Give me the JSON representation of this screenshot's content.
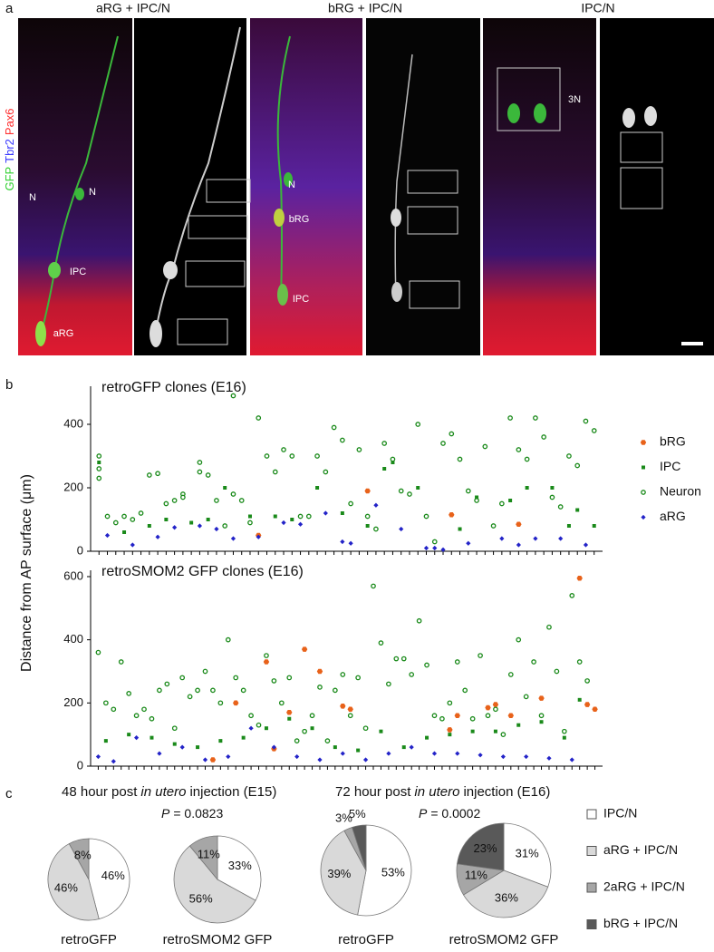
{
  "panel_labels": [
    "a",
    "b",
    "c"
  ],
  "panel_a": {
    "columns": [
      "aRG + IPC/N",
      "bRG + IPC/N",
      "IPC/N"
    ],
    "stain_labels": [
      "GFP",
      "Tbr2",
      "Pax6"
    ],
    "cell_labels": [
      "N",
      "N",
      "IPC",
      "aRG",
      "N",
      "bRG",
      "IPC",
      "3N"
    ]
  },
  "chart_data": [
    {
      "type": "scatter",
      "title": "retroGFP clones (E16)",
      "ylabel": "Distance from AP surface (μm)",
      "xlim": [
        0,
        61
      ],
      "ylim": [
        0,
        520
      ],
      "yticks": [
        0,
        200,
        400
      ],
      "xticks": [
        1,
        2,
        3,
        4,
        5,
        6,
        7,
        8,
        9,
        10,
        11,
        12,
        13,
        14,
        15,
        16,
        17,
        18,
        19,
        20,
        21,
        22,
        23,
        24,
        25,
        26,
        27,
        28,
        29,
        30,
        31,
        32,
        33,
        34,
        35,
        36,
        37,
        38,
        39,
        40,
        41,
        42,
        43,
        44,
        45,
        46,
        47,
        48,
        49,
        50,
        51,
        52,
        53,
        54,
        55,
        56,
        57,
        58,
        59,
        60
      ],
      "series": [
        {
          "name": "bRG",
          "color": "#e8621a",
          "marker": "hexagon",
          "x": [
            20,
            33,
            43,
            51
          ],
          "values": [
            50,
            190,
            115,
            85
          ]
        },
        {
          "name": "IPC",
          "color": "#1a8a1a",
          "marker": "square",
          "x": [
            1,
            4,
            7,
            9,
            12,
            14,
            16,
            19,
            22,
            24,
            27,
            30,
            33,
            35,
            36,
            39,
            44,
            46,
            50,
            52,
            55,
            57,
            58,
            60
          ],
          "values": [
            280,
            60,
            80,
            100,
            90,
            100,
            200,
            110,
            110,
            100,
            200,
            120,
            80,
            260,
            280,
            200,
            70,
            170,
            160,
            200,
            200,
            80,
            130,
            80
          ]
        },
        {
          "name": "Neuron",
          "color": "#1a8a1a",
          "marker": "circle-open",
          "x": [
            1,
            1,
            1,
            2,
            3,
            4,
            5,
            6,
            7,
            8,
            9,
            10,
            11,
            11,
            13,
            13,
            14,
            15,
            16,
            17,
            17,
            18,
            19,
            20,
            21,
            22,
            23,
            24,
            25,
            26,
            27,
            28,
            29,
            30,
            31,
            32,
            33,
            34,
            35,
            36,
            37,
            38,
            39,
            40,
            41,
            42,
            43,
            44,
            45,
            46,
            47,
            48,
            49,
            50,
            51,
            52,
            53,
            54,
            55,
            56,
            57,
            58,
            59,
            60
          ],
          "values": [
            300,
            260,
            230,
            110,
            90,
            110,
            100,
            120,
            240,
            245,
            150,
            160,
            180,
            170,
            280,
            250,
            240,
            160,
            80,
            490,
            180,
            160,
            90,
            420,
            300,
            250,
            320,
            300,
            110,
            110,
            300,
            250,
            390,
            350,
            150,
            320,
            110,
            70,
            340,
            290,
            190,
            180,
            400,
            110,
            30,
            340,
            370,
            290,
            190,
            160,
            330,
            80,
            150,
            420,
            320,
            290,
            420,
            360,
            170,
            140,
            300,
            270,
            410,
            380
          ]
        },
        {
          "name": "aRG",
          "color": "#2323c8",
          "marker": "diamond",
          "x": [
            2,
            5,
            8,
            10,
            13,
            15,
            17,
            20,
            23,
            25,
            28,
            30,
            31,
            34,
            37,
            40,
            41,
            42,
            45,
            49,
            51,
            53,
            56,
            59
          ],
          "values": [
            50,
            20,
            45,
            75,
            80,
            70,
            40,
            45,
            90,
            85,
            120,
            30,
            25,
            145,
            70,
            10,
            10,
            5,
            25,
            40,
            20,
            40,
            40,
            20
          ]
        }
      ]
    },
    {
      "type": "scatter",
      "title": "retroSMOM2 GFP clones (E16)",
      "xlim": [
        0,
        67
      ],
      "ylim": [
        0,
        620
      ],
      "yticks": [
        0,
        200,
        400,
        600
      ],
      "xticks": [
        1,
        2,
        3,
        4,
        5,
        6,
        7,
        8,
        9,
        10,
        11,
        12,
        13,
        14,
        15,
        16,
        17,
        18,
        19,
        20,
        21,
        22,
        23,
        24,
        25,
        26,
        27,
        28,
        29,
        30,
        31,
        32,
        33,
        34,
        35,
        36,
        37,
        38,
        39,
        40,
        41,
        42,
        43,
        44,
        45,
        46,
        47,
        48,
        49,
        50,
        51,
        52,
        53,
        54,
        55,
        56,
        57,
        58,
        59,
        60,
        61,
        62,
        63,
        64,
        65,
        66
      ],
      "series": [
        {
          "color": "#e8621a",
          "marker": "hexagon",
          "x": [
            16,
            19,
            23,
            24,
            26,
            28,
            30,
            33,
            34,
            47,
            48,
            52,
            53,
            55,
            59,
            64,
            65,
            66
          ],
          "values": [
            20,
            200,
            330,
            55,
            170,
            370,
            300,
            190,
            180,
            115,
            160,
            185,
            195,
            160,
            215,
            595,
            195,
            180
          ]
        },
        {
          "color": "#1a8a1a",
          "marker": "square",
          "x": [
            2,
            5,
            8,
            11,
            14,
            17,
            20,
            23,
            26,
            29,
            32,
            35,
            38,
            41,
            44,
            47,
            50,
            53,
            56,
            59,
            62,
            64
          ],
          "values": [
            80,
            100,
            90,
            70,
            60,
            80,
            90,
            120,
            150,
            120,
            60,
            50,
            110,
            60,
            90,
            100,
            110,
            110,
            130,
            140,
            90,
            210
          ]
        },
        {
          "color": "#1a8a1a",
          "marker": "circle-open",
          "x": [
            1,
            2,
            3,
            4,
            5,
            6,
            7,
            8,
            9,
            10,
            11,
            12,
            13,
            14,
            15,
            16,
            17,
            18,
            19,
            20,
            21,
            22,
            23,
            24,
            25,
            26,
            27,
            28,
            29,
            30,
            31,
            32,
            33,
            34,
            35,
            36,
            37,
            38,
            39,
            40,
            41,
            42,
            43,
            44,
            45,
            46,
            47,
            48,
            49,
            50,
            51,
            52,
            53,
            54,
            55,
            56,
            57,
            58,
            59,
            60,
            61,
            62,
            63,
            64,
            65
          ],
          "values": [
            360,
            200,
            180,
            330,
            230,
            160,
            180,
            150,
            240,
            260,
            120,
            280,
            220,
            240,
            300,
            240,
            200,
            400,
            280,
            240,
            160,
            130,
            350,
            270,
            200,
            280,
            80,
            110,
            160,
            250,
            80,
            240,
            290,
            160,
            280,
            120,
            570,
            390,
            260,
            340,
            340,
            290,
            460,
            320,
            160,
            150,
            200,
            330,
            240,
            150,
            350,
            160,
            180,
            100,
            290,
            400,
            220,
            330,
            160,
            440,
            300,
            110,
            540,
            330,
            270
          ]
        },
        {
          "color": "#2323c8",
          "marker": "diamond",
          "x": [
            1,
            3,
            6,
            9,
            12,
            15,
            18,
            21,
            24,
            27,
            30,
            33,
            36,
            39,
            42,
            45,
            48,
            51,
            54,
            57,
            60,
            63
          ],
          "values": [
            30,
            15,
            90,
            40,
            60,
            20,
            30,
            120,
            60,
            30,
            20,
            40,
            20,
            40,
            60,
            40,
            40,
            35,
            30,
            30,
            25,
            20
          ]
        }
      ]
    },
    {
      "type": "pie",
      "label": "retroGFP",
      "values": [
        46,
        46,
        8
      ],
      "value_labels": [
        "46%",
        "46%",
        "8%"
      ]
    },
    {
      "type": "pie",
      "label": "retroSMOM2 GFP",
      "values": [
        33,
        56,
        11
      ],
      "value_labels": [
        "33%",
        "56%",
        "11%"
      ]
    },
    {
      "type": "pie",
      "label": "retroGFP",
      "values": [
        53,
        39,
        3,
        5
      ],
      "value_labels": [
        "53%",
        "39%",
        "3%",
        "5%"
      ]
    },
    {
      "type": "pie",
      "label": "retroSMOM2 GFP",
      "values": [
        31,
        36,
        11,
        23
      ],
      "value_labels": [
        "31%",
        "36%",
        "11%",
        "23%"
      ]
    }
  ],
  "panel_c": {
    "groups": [
      {
        "pre": "48 hour post",
        "italic": "in utero",
        "post": "injection (E15)",
        "p": {
          "symbol": "P",
          "text": "= 0.0823"
        }
      },
      {
        "pre": "72 hour post",
        "italic": "in utero",
        "post": "injection (E16)",
        "p": {
          "symbol": "P",
          "text": "= 0.0002"
        }
      }
    ],
    "legend": {
      "labels": [
        "IPC/N",
        "aRG + IPC/N",
        "2aRG + IPC/N",
        "bRG + IPC/N"
      ],
      "colors": [
        "#ffffff",
        "#d9d9d9",
        "#a6a6a6",
        "#595959"
      ]
    }
  }
}
